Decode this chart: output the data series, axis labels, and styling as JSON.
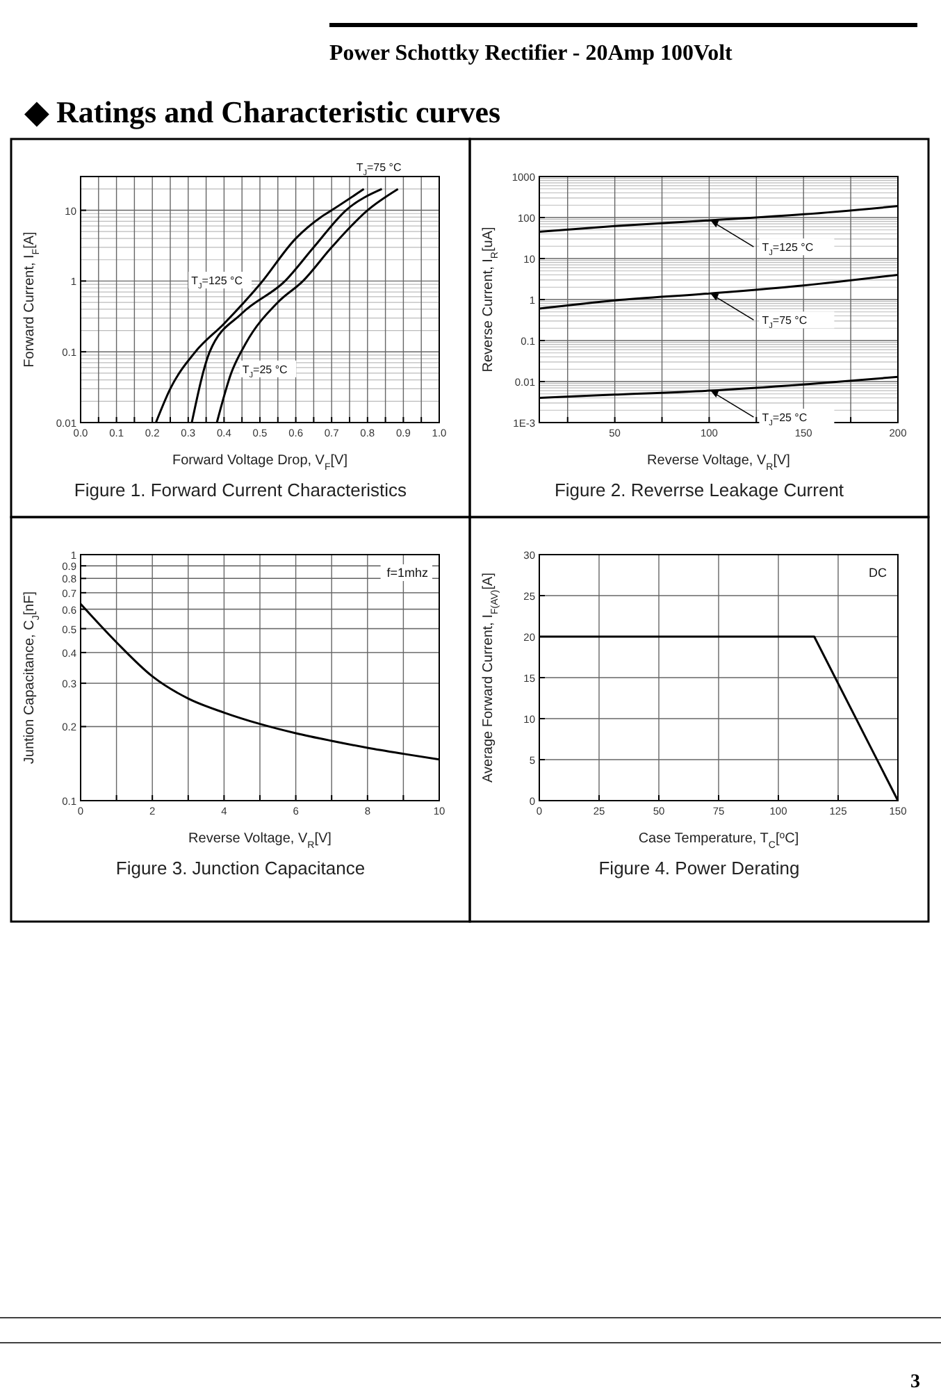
{
  "chart_data": [
    {
      "type": "other",
      "title": "◆ Ratings and Characteristic curves",
      "subtitle": "Power Schottky Rectifier - 20Amp 100Volt",
      "annotations": [
        "3"
      ]
    },
    {
      "type": "line",
      "title": "Figure 1. Forward Current Characteristics",
      "xlabel": "Forward Voltage Drop, V$_{F}$[V]",
      "ylabel": "Forward Current, I$_{F}$[A]",
      "log": "y",
      "grid": true,
      "xlim": [
        0,
        1
      ],
      "ylim": [
        0.01,
        30
      ],
      "xticks": [
        {
          "value": 0,
          "label": "0.0"
        },
        {
          "value": 0.05,
          "label": null
        },
        0.1,
        {
          "value": 0.15,
          "label": null
        },
        0.2,
        {
          "value": 0.25,
          "label": null
        },
        0.3,
        {
          "value": 0.35,
          "label": null
        },
        0.4,
        {
          "value": 0.45,
          "label": null
        },
        0.5,
        {
          "value": 0.55,
          "label": null
        },
        0.6,
        {
          "value": 0.65,
          "label": null
        },
        0.7,
        {
          "value": 0.75,
          "label": null
        },
        0.8,
        {
          "value": 0.85,
          "label": null
        },
        0.9,
        {
          "value": 0.95,
          "label": null
        },
        {
          "value": 1,
          "label": "1.0"
        }
      ],
      "yticks": [
        0.01,
        0.1,
        1,
        10
      ],
      "series": [
        {
          "name": "T$_{J}$=125 °C",
          "color": "#000000",
          "x": [
            0.21,
            0.25,
            0.32,
            0.4,
            0.5,
            0.6,
            0.67,
            0.7,
            0.79
          ],
          "values": [
            0.01,
            0.03,
            0.1,
            0.25,
            0.9,
            4,
            8,
            10,
            20
          ]
        },
        {
          "name": "T$_{J}$=75 °C",
          "color": "#000000",
          "x": [
            0.31,
            0.36,
            0.45,
            0.57,
            0.65,
            0.74,
            0.84
          ],
          "values": [
            0.01,
            0.1,
            0.35,
            1,
            3,
            10,
            20
          ]
        },
        {
          "name": "T$_{J}$=25 °C",
          "color": "#000000",
          "x": [
            0.38,
            0.42,
            0.46,
            0.55,
            0.62,
            0.7,
            0.8,
            0.885
          ],
          "values": [
            0.01,
            0.05,
            0.13,
            0.5,
            1,
            3,
            10,
            20
          ]
        }
      ]
    },
    {
      "type": "line",
      "title": "Figure 2. Reverrse Leakage Current",
      "xlabel": "Reverse Voltage, V$_{R}$[V]",
      "ylabel": "Reverse Current, I$_{R}$[uA]",
      "log": "y",
      "grid": true,
      "xlim": [
        10,
        200
      ],
      "ylim": [
        0.001,
        1000
      ],
      "xticks": [
        {
          "value": 25,
          "label": null
        },
        50,
        {
          "value": 75,
          "label": null
        },
        100,
        {
          "value": 125,
          "label": null
        },
        150,
        {
          "value": 175,
          "label": null
        },
        200
      ],
      "yticks": [
        {
          "value": 0.001,
          "label": "1E-3"
        },
        0.01,
        0.1,
        1,
        10,
        100,
        1000
      ],
      "series": [
        {
          "name": "T$_{J}$=125 °C",
          "color": "#000000",
          "x": [
            10,
            50,
            100,
            150,
            200
          ],
          "values": [
            45,
            62,
            85,
            120,
            190
          ]
        },
        {
          "name": "T$_{J}$=75 °C",
          "color": "#000000",
          "x": [
            10,
            50,
            100,
            150,
            200
          ],
          "values": [
            0.6,
            0.95,
            1.4,
            2.2,
            4
          ]
        },
        {
          "name": "T$_{J}$=25 °C",
          "color": "#000000",
          "x": [
            10,
            50,
            100,
            150,
            200
          ],
          "values": [
            0.004,
            0.0048,
            0.006,
            0.0085,
            0.013
          ]
        }
      ]
    },
    {
      "type": "line",
      "title": "Figure 3. Junction Capacitance",
      "xlabel": "Reverse Voltage, V$_{R}$[V]",
      "ylabel": "Juntion Capacitance, C$_{J}$[nF]",
      "log": "y",
      "grid": true,
      "xlim": [
        0,
        10
      ],
      "ylim": [
        0.1,
        1
      ],
      "xticks": [
        0,
        {
          "value": 1,
          "label": null
        },
        2,
        {
          "value": 3,
          "label": null
        },
        4,
        {
          "value": 5,
          "label": null
        },
        6,
        {
          "value": 7,
          "label": null
        },
        8,
        {
          "value": 9,
          "label": null
        },
        10
      ],
      "yticks": [
        0.1,
        0.2,
        0.3,
        0.4,
        0.5,
        0.6,
        0.7,
        0.8,
        0.9,
        1
      ],
      "annotations": [
        "f=1mhz"
      ],
      "series": [
        {
          "color": "#000000",
          "x": [
            0,
            1,
            2,
            3,
            4,
            5,
            6,
            7,
            8,
            9,
            10
          ],
          "values": [
            0.63,
            0.44,
            0.32,
            0.26,
            0.228,
            0.205,
            0.188,
            0.175,
            0.164,
            0.155,
            0.147
          ]
        }
      ]
    },
    {
      "type": "line",
      "title": "Figure 4. Power Derating",
      "xlabel": "Case Temperature, T$_{C}$[$^{o}$C]",
      "ylabel": "Average Forward Current, I$_{F(AV)}$[A]",
      "grid": true,
      "xlim": [
        0,
        150
      ],
      "ylim": [
        0,
        30
      ],
      "xticks": [
        0,
        25,
        50,
        75,
        100,
        125,
        150
      ],
      "yticks": [
        0,
        5,
        10,
        15,
        20,
        25,
        30
      ],
      "annotations": [
        "DC"
      ],
      "series": [
        {
          "color": "#000000",
          "x": [
            0,
            115,
            150
          ],
          "values": [
            20,
            20,
            0
          ]
        }
      ]
    }
  ]
}
